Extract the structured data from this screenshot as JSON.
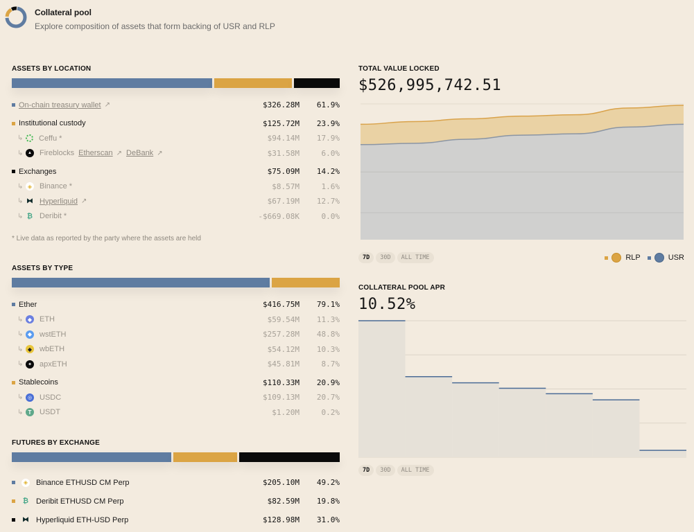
{
  "colors": {
    "blue": "#5f7ca1",
    "orange": "#dba444",
    "black": "#0a0a0a",
    "background": "#f3ebdf"
  },
  "header": {
    "title": "Collateral pool",
    "subtitle": "Explore composition of assets that form backing of USR and RLP"
  },
  "assets_by_location": {
    "title": "ASSETS BY LOCATION",
    "bar": [
      {
        "name": "On-chain treasury wallet",
        "pct": 61.9,
        "color": "#5f7ca1"
      },
      {
        "name": "Institutional custody",
        "pct": 23.9,
        "color": "#dba444"
      },
      {
        "name": "Exchanges",
        "pct": 14.2,
        "color": "#0a0a0a"
      }
    ],
    "onchain": {
      "label": "On-chain treasury wallet",
      "amount": "$326.28M",
      "pct": "61.9%"
    },
    "custody": {
      "label": "Institutional custody",
      "amount": "$125.72M",
      "pct": "23.9%"
    },
    "ceffu": {
      "label": "Ceffu *",
      "amount": "$94.14M",
      "pct": "17.9%",
      "icon": "ceffu-icon"
    },
    "fireblocks": {
      "label": "Fireblocks",
      "link1": "Etherscan",
      "link2": "DeBank",
      "amount": "$31.58M",
      "pct": "6.0%",
      "icon": "fireblocks-icon"
    },
    "exchanges": {
      "label": "Exchanges",
      "amount": "$75.09M",
      "pct": "14.2%"
    },
    "binance": {
      "label": "Binance *",
      "amount": "$8.57M",
      "pct": "1.6%",
      "icon": "binance-icon"
    },
    "hyperliquid": {
      "label": "Hyperliquid",
      "amount": "$67.19M",
      "pct": "12.7%",
      "icon": "hyperliquid-icon"
    },
    "deribit": {
      "label": "Deribit *",
      "amount": "-$669.08K",
      "pct": "0.0%",
      "icon": "deribit-icon"
    },
    "footnote": "*  Live data as reported by the party where the assets are held"
  },
  "assets_by_type": {
    "title": "ASSETS BY TYPE",
    "bar": [
      {
        "name": "Ether",
        "pct": 79.1,
        "color": "#5f7ca1"
      },
      {
        "name": "Stablecoins",
        "pct": 20.9,
        "color": "#dba444"
      }
    ],
    "ether": {
      "label": "Ether",
      "amount": "$416.75M",
      "pct": "79.1%"
    },
    "eth": {
      "label": "ETH",
      "amount": "$59.54M",
      "pct": "11.3%",
      "icon": "eth-icon"
    },
    "wsteth": {
      "label": "wstETH",
      "amount": "$257.28M",
      "pct": "48.8%",
      "icon": "wsteth-icon"
    },
    "wbeth": {
      "label": "wbETH",
      "amount": "$54.12M",
      "pct": "10.3%",
      "icon": "wbeth-icon"
    },
    "apxeth": {
      "label": "apxETH",
      "amount": "$45.81M",
      "pct": "8.7%",
      "icon": "apxeth-icon"
    },
    "stablecoins": {
      "label": "Stablecoins",
      "amount": "$110.33M",
      "pct": "20.9%"
    },
    "usdc": {
      "label": "USDC",
      "amount": "$109.13M",
      "pct": "20.7%",
      "icon": "usdc-icon"
    },
    "usdt": {
      "label": "USDT",
      "amount": "$1.20M",
      "pct": "0.2%",
      "icon": "usdt-icon"
    }
  },
  "futures_by_exchange": {
    "title": "FUTURES BY EXCHANGE",
    "bar": [
      {
        "name": "Binance ETHUSD CM Perp",
        "pct": 49.2,
        "color": "#5f7ca1"
      },
      {
        "name": "Deribit ETHUSD CM Perp",
        "pct": 19.8,
        "color": "#dba444"
      },
      {
        "name": "Hyperliquid ETH-USD Perp",
        "pct": 31.0,
        "color": "#0a0a0a"
      }
    ],
    "binance": {
      "label": "Binance ETHUSD CM Perp",
      "amount": "$205.10M",
      "pct": "49.2%",
      "icon": "binance-icon"
    },
    "deribit": {
      "label": "Deribit ETHUSD CM Perp",
      "amount": "$82.59M",
      "pct": "19.8%",
      "icon": "deribit-icon"
    },
    "hyperliquid": {
      "label": "Hyperliquid ETH-USD Perp",
      "amount": "$128.98M",
      "pct": "31.0%",
      "icon": "hyperliquid-icon"
    }
  },
  "tvl": {
    "label": "TOTAL VALUE LOCKED",
    "value": "$526,995,742.51",
    "range_buttons": [
      "7D",
      "30D",
      "ALL TIME"
    ],
    "active_range": "7D",
    "legend": [
      {
        "label": "RLP",
        "color": "#dba444",
        "icon": "rlp-coin-icon"
      },
      {
        "label": "USR",
        "color": "#5f7ca1",
        "icon": "usr-coin-icon"
      }
    ]
  },
  "apr": {
    "label": "COLLATERAL POOL APR",
    "value": "10.52%",
    "range_buttons": [
      "7D",
      "30D",
      "ALL TIME"
    ],
    "active_range": "7D"
  },
  "chart_data": [
    {
      "type": "area",
      "title": "TOTAL VALUE LOCKED",
      "stacked": true,
      "x": [
        1,
        2,
        3,
        4,
        5,
        6,
        7
      ],
      "series": [
        {
          "name": "USR",
          "color": "#5f7ca1",
          "values": [
            0.7,
            0.71,
            0.74,
            0.77,
            0.78,
            0.83,
            0.85
          ]
        },
        {
          "name": "RLP",
          "color": "#dba444",
          "values": [
            0.15,
            0.16,
            0.15,
            0.14,
            0.14,
            0.14,
            0.14
          ]
        }
      ],
      "units": "relative (normalized to chart max)",
      "grid": true,
      "legend": "bottom-right"
    },
    {
      "type": "line",
      "step": true,
      "title": "COLLATERAL POOL APR",
      "x": [
        1,
        2,
        3,
        4,
        5,
        6,
        7
      ],
      "series": [
        {
          "name": "APR",
          "color": "#5f7ca1",
          "values": [
            1.0,
            0.59,
            0.545,
            0.505,
            0.465,
            0.42,
            0.05
          ]
        }
      ],
      "units": "relative (normalized to chart max)",
      "grid": true
    }
  ]
}
